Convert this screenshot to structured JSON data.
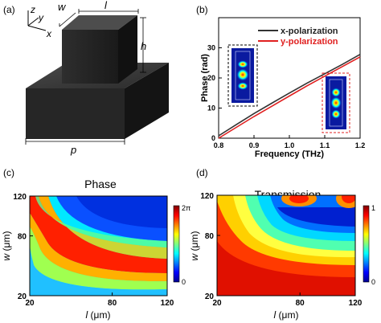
{
  "panels": {
    "a": {
      "label": "(a)",
      "axes": {
        "z": "z",
        "y": "y",
        "x": "x"
      },
      "dims": {
        "w": "w",
        "l": "l",
        "h": "h",
        "p": "p"
      }
    },
    "b": {
      "label": "(b)",
      "xlabel": "Frequency (THz)",
      "ylabel": "Phase (rad)",
      "xticks": [
        "0.8",
        "0.9",
        "1.0",
        "1.1",
        "1.2"
      ],
      "yticks": [
        "0",
        "10",
        "20",
        "30"
      ]
    },
    "c": {
      "label": "(c)",
      "title": "Phase",
      "xlabel_var": "l",
      "xlabel_unit": " (μm)",
      "ylabel_var": "w",
      "ylabel_unit": " (μm)",
      "xticks": [
        "20",
        "80",
        "120"
      ],
      "yticks": [
        "120",
        "80",
        "20"
      ],
      "cbar_max": "2π",
      "cbar_min": "0"
    },
    "d": {
      "label": "(d)",
      "title": "Transmission",
      "xlabel_var": "l",
      "xlabel_unit": " (μm)",
      "ylabel_var": "w",
      "ylabel_unit": " (μm)",
      "xticks": [
        "20",
        "80",
        "120"
      ],
      "yticks": [
        "120",
        "80",
        "20"
      ],
      "cbar_max": "1",
      "cbar_min": "0"
    }
  },
  "chart_data": [
    {
      "type": "line",
      "panel": "b",
      "xlabel": "Frequency (THz)",
      "ylabel": "Phase (rad)",
      "xlim": [
        0.8,
        1.2
      ],
      "ylim": [
        0,
        40
      ],
      "grid": false,
      "legend": "top-right",
      "series": [
        {
          "name": "x-polarization",
          "color": "#333333",
          "x": [
            0.8,
            0.85,
            0.9,
            0.95,
            1.0,
            1.05,
            1.1,
            1.15,
            1.2
          ],
          "y": [
            0.8,
            4.5,
            8.2,
            11.6,
            15.0,
            18.3,
            21.4,
            24.5,
            27.8
          ]
        },
        {
          "name": "y-polarization",
          "color": "#e02020",
          "x": [
            0.8,
            0.85,
            0.9,
            0.95,
            1.0,
            1.05,
            1.1,
            1.15,
            1.2
          ],
          "y": [
            0.0,
            3.6,
            7.2,
            10.6,
            14.0,
            17.4,
            20.6,
            23.8,
            27.0
          ]
        }
      ]
    },
    {
      "type": "heatmap",
      "panel": "c",
      "title": "Phase",
      "xlim": [
        20,
        120
      ],
      "ylim": [
        20,
        120
      ],
      "colorscale": "jet",
      "crange": [
        "0",
        "2π"
      ]
    },
    {
      "type": "heatmap",
      "panel": "d",
      "title": "Transmission",
      "xlim": [
        20,
        120
      ],
      "ylim": [
        20,
        120
      ],
      "colorscale": "jet",
      "crange": [
        0,
        1
      ]
    }
  ]
}
